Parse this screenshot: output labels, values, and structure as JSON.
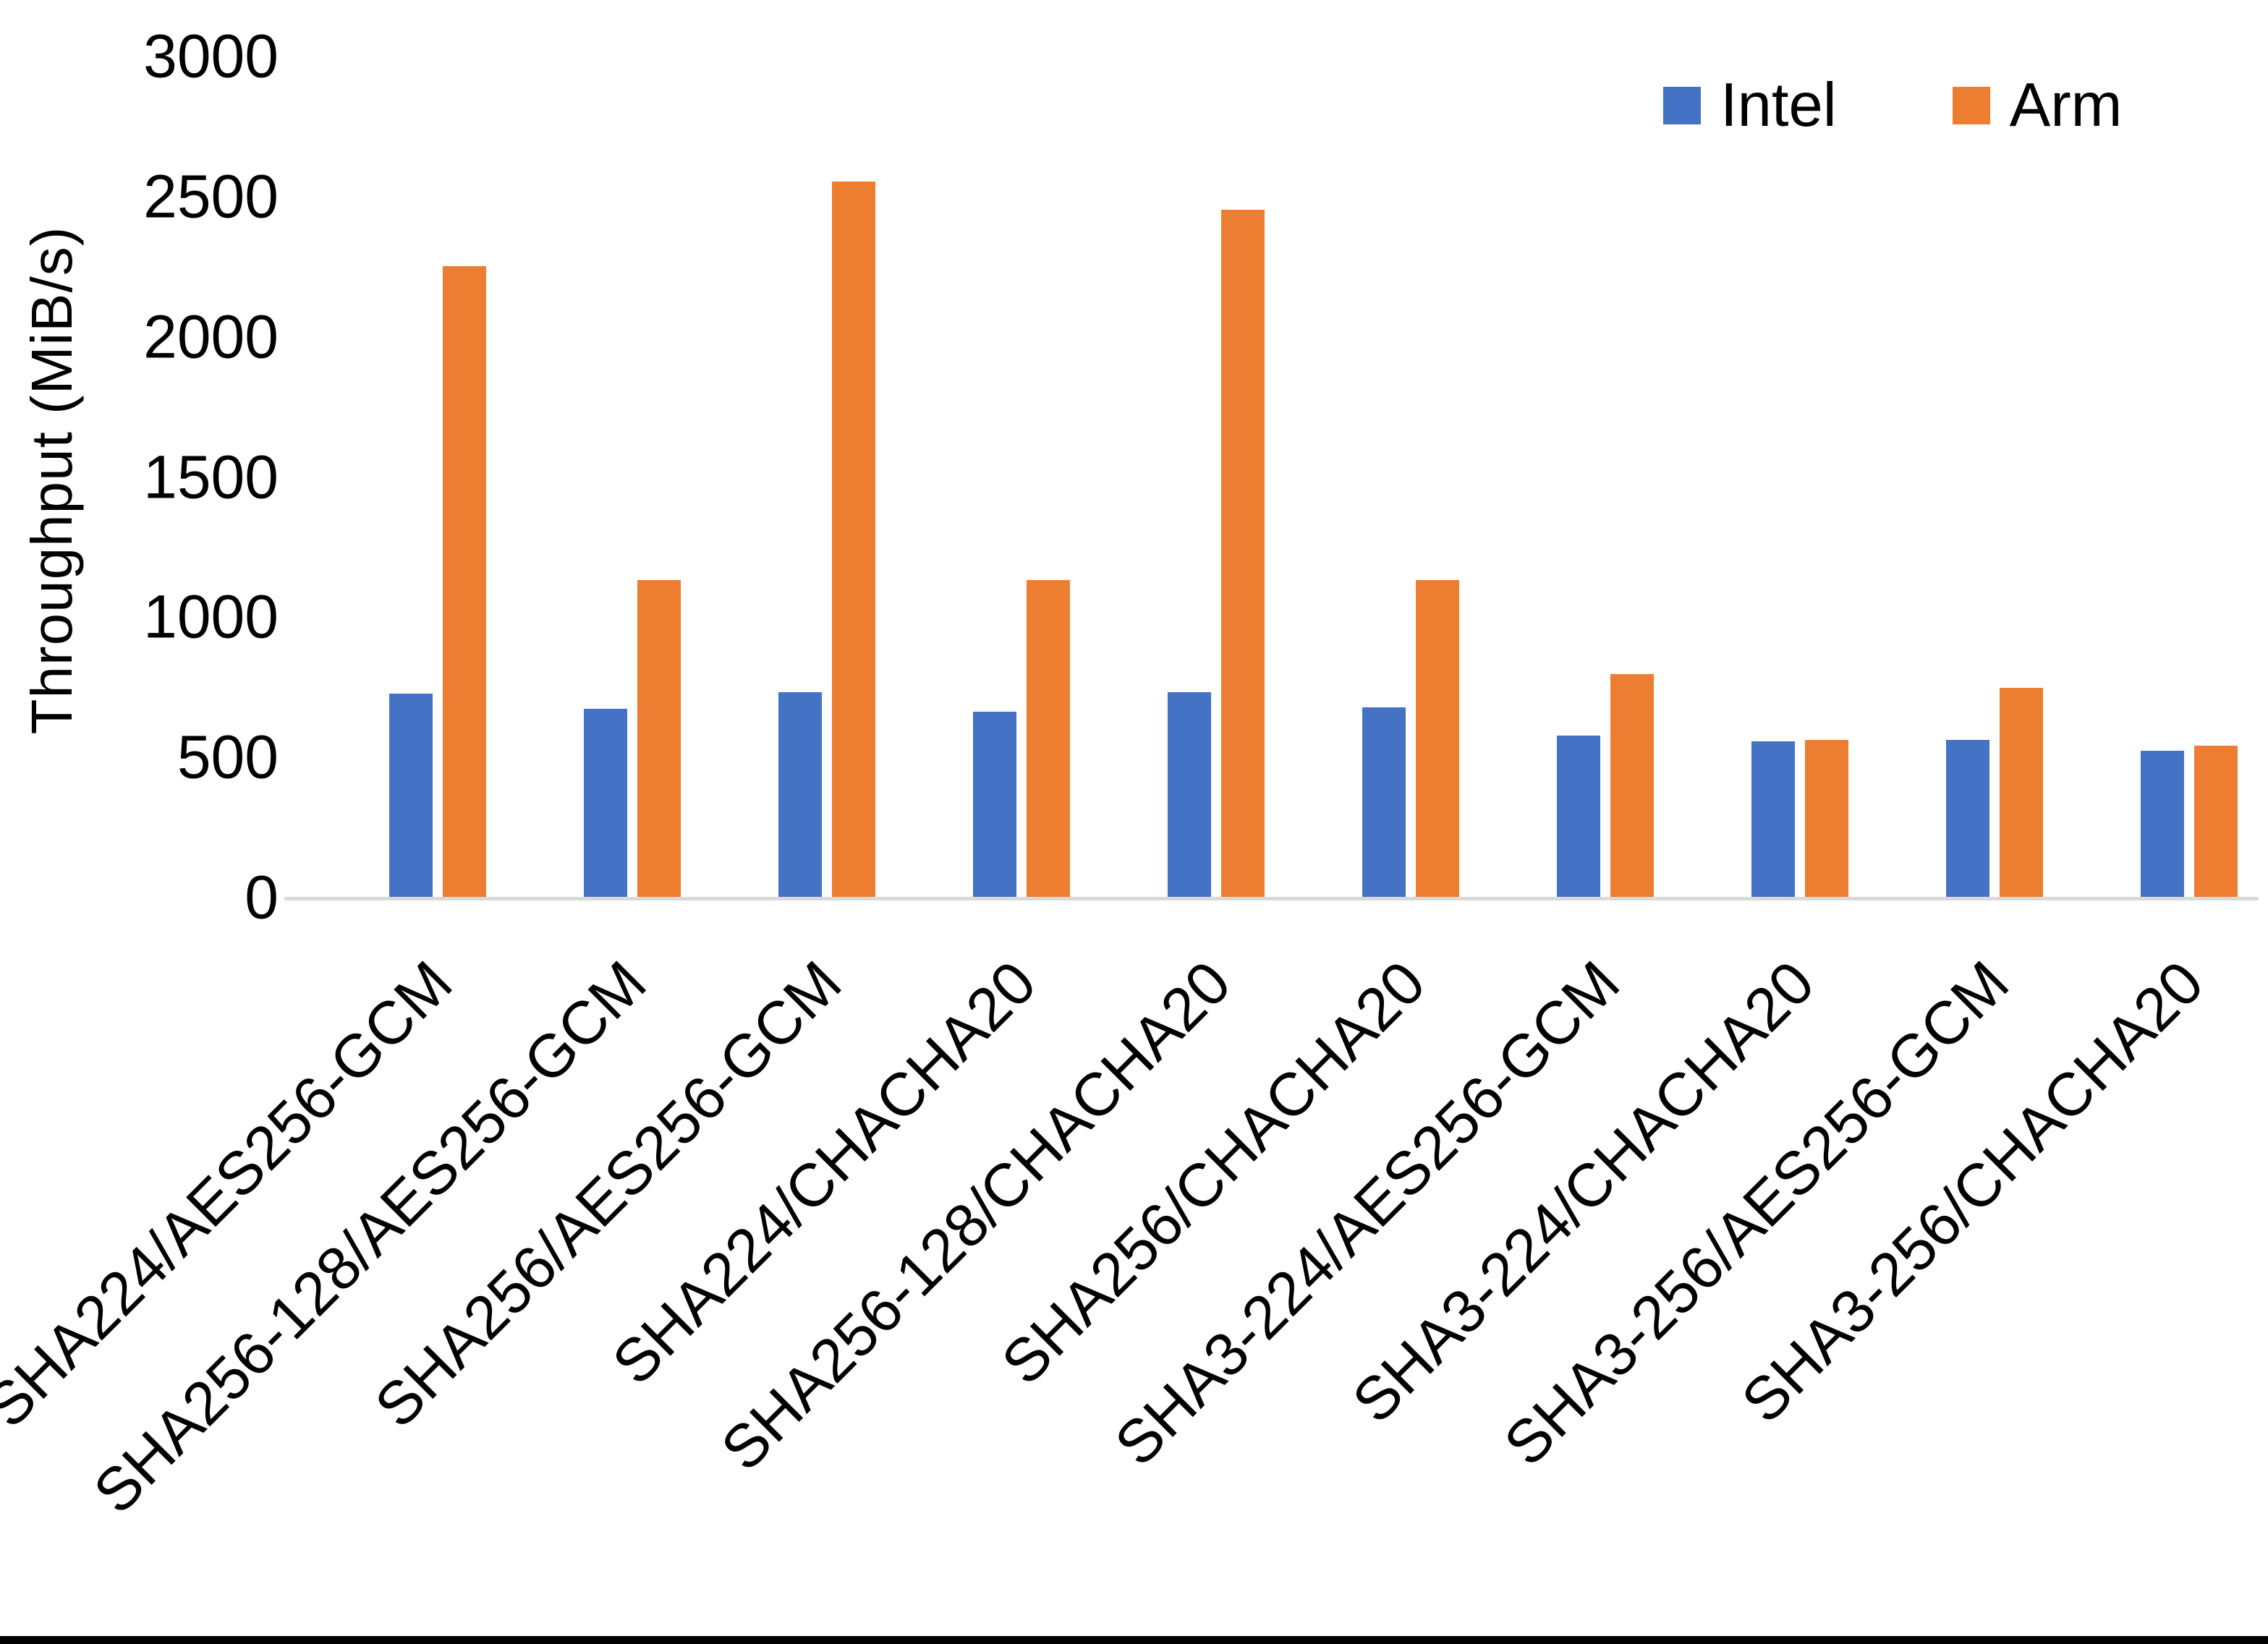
{
  "chart_data": {
    "type": "bar",
    "title": "",
    "xlabel": "",
    "ylabel": "Throughput (MiB/s)",
    "ylim": [
      0,
      3000
    ],
    "yticks": [
      0,
      500,
      1000,
      1500,
      2000,
      2500,
      3000
    ],
    "grid": false,
    "legend_position": "top-right",
    "axis_line_color": "#D9D9D9",
    "categories": [
      "SHA224/AES256-GCM",
      "SHA256-128/AES256-GCM",
      "SHA256/AES256-GCM",
      "SHA224/CHACHA20",
      "SHA256-128/CHACHA20",
      "SHA256/CHACHA20",
      "SHA3-224/AES256-GCM",
      "SHA3-224/CHACHA20",
      "SHA3-256/AES256-GCM",
      "SHA3-256/CHACHA20"
    ],
    "series": [
      {
        "name": "Intel",
        "color": "#4472C4",
        "values": [
          725,
          670,
          730,
          660,
          730,
          675,
          575,
          555,
          560,
          520
        ]
      },
      {
        "name": "Arm",
        "color": "#ED7D31",
        "values": [
          2250,
          1130,
          2550,
          1130,
          2450,
          1130,
          795,
          560,
          745,
          540
        ]
      }
    ]
  }
}
